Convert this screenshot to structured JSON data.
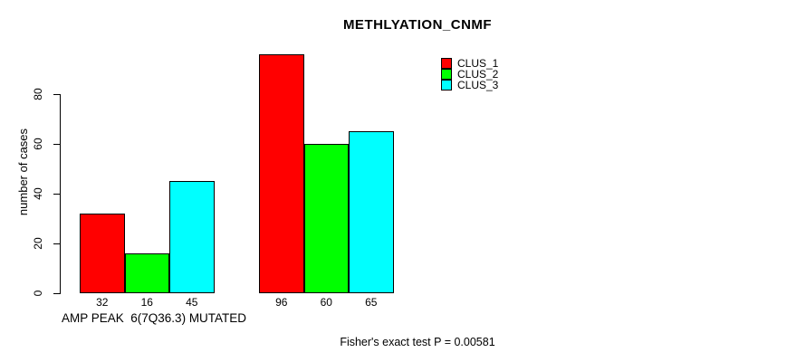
{
  "chart_data": {
    "type": "bar",
    "title": "METHLYATION_CNMF",
    "ylabel": "number of cases",
    "xlabel": "AMP PEAK  6(7Q36.3) MUTATED",
    "annotation": "Fisher's exact test P = 0.00581",
    "ylim": [
      0,
      96
    ],
    "yticks": [
      0,
      20,
      40,
      60,
      80
    ],
    "grid": false,
    "legend_position": "top-right",
    "bar_border_color": "#000000",
    "series": [
      {
        "name": "CLUS_1",
        "color": "#ff0000",
        "values": [
          32,
          96
        ]
      },
      {
        "name": "CLUS_2",
        "color": "#00ff00",
        "values": [
          16,
          60
        ]
      },
      {
        "name": "CLUS_3",
        "color": "#00ffff",
        "values": [
          45,
          65
        ]
      }
    ],
    "groups": [
      {
        "bar_labels": [
          "32",
          "16",
          "45"
        ]
      },
      {
        "bar_labels": [
          "96",
          "60",
          "65"
        ]
      }
    ]
  }
}
